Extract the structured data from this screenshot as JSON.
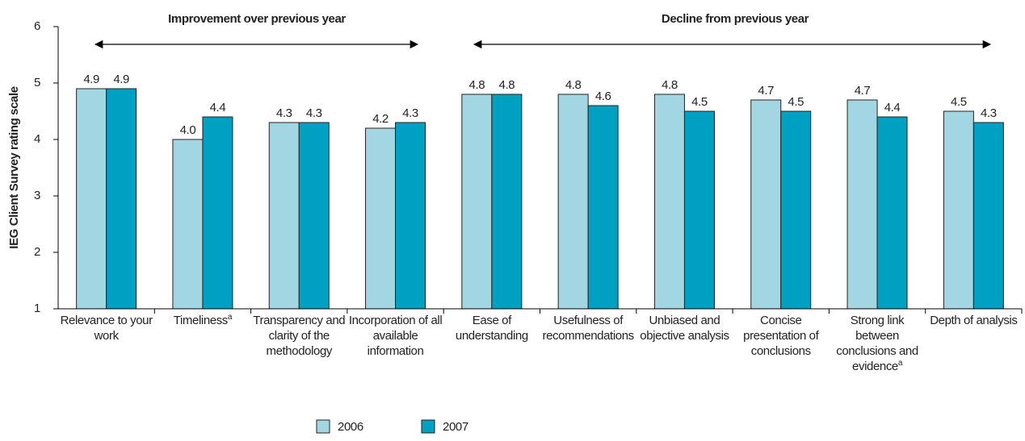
{
  "chart_data": {
    "type": "bar",
    "ylabel": "IEG Client Survey rating scale",
    "categories": [
      "Relevance to your work",
      "Timeliness",
      "Transparency and clarity of the methodology",
      "Incorporation of all available information",
      "Ease of understanding",
      "Usefulness of recommendations",
      "Unbiased and objective analysis",
      "Concise presentation of conclusions",
      "Strong link between conclusions and evidence",
      "Depth of analysis"
    ],
    "category_notes": [
      null,
      "a",
      null,
      null,
      null,
      null,
      null,
      null,
      "a",
      null
    ],
    "series": [
      {
        "name": "2006",
        "color": "#a3d6e3",
        "values": [
          4.9,
          4.0,
          4.3,
          4.2,
          4.8,
          4.8,
          4.8,
          4.7,
          4.7,
          4.5
        ],
        "value_labels": [
          "4.9",
          "4.0",
          "4.3",
          "4.2",
          "4.8",
          "4.8",
          "4.8",
          "4.7",
          "4.7",
          "4.5"
        ]
      },
      {
        "name": "2007",
        "color": "#00a0c2",
        "values": [
          4.9,
          4.4,
          4.3,
          4.3,
          4.8,
          4.6,
          4.5,
          4.5,
          4.4,
          4.3
        ],
        "value_labels": [
          "4.9",
          "4.4",
          "4.3",
          "4.3",
          "4.8",
          "4.6",
          "4.5",
          "4.5",
          "4.4",
          "4.3"
        ]
      }
    ],
    "ylim": [
      1,
      6
    ],
    "yticks": [
      1,
      2,
      3,
      4,
      5,
      6
    ],
    "annotations": [
      "Improvement over previous year",
      "Decline from previous year"
    ],
    "legend": "bottom"
  }
}
